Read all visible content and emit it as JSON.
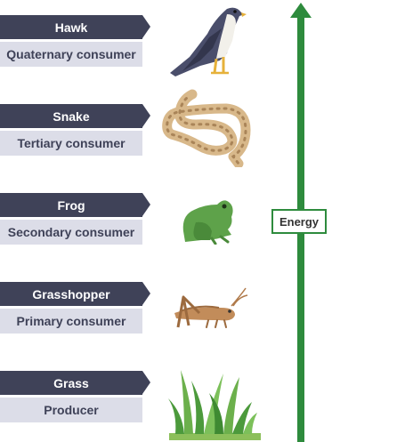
{
  "levels": [
    {
      "name": "Hawk",
      "role": "Quaternary consumer",
      "icon": "hawk-icon"
    },
    {
      "name": "Snake",
      "role": "Tertiary consumer",
      "icon": "snake-icon"
    },
    {
      "name": "Frog",
      "role": "Secondary consumer",
      "icon": "frog-icon"
    },
    {
      "name": "Grasshopper",
      "role": "Primary consumer",
      "icon": "grasshopper-icon"
    },
    {
      "name": "Grass",
      "role": "Producer",
      "icon": "grass-icon"
    }
  ],
  "energy_label": "Energy",
  "colors": {
    "tag_dark": "#3f4258",
    "tag_light": "#dcdde8",
    "arrow_green": "#2e8b3d"
  }
}
